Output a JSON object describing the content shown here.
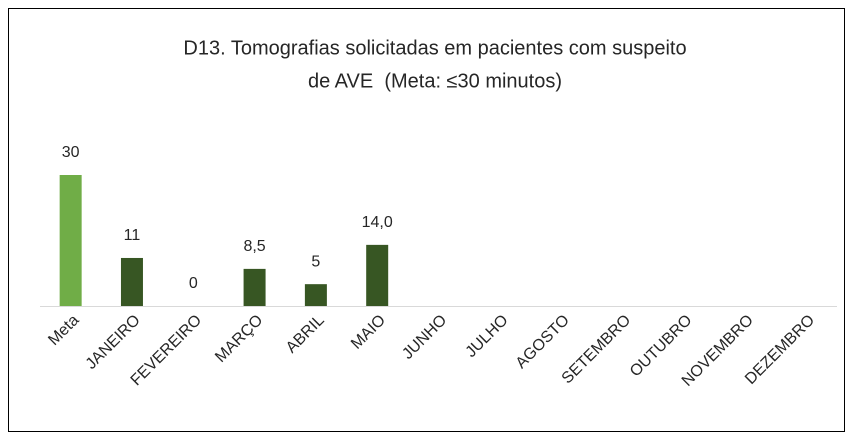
{
  "chart_data": {
    "type": "bar",
    "title": [
      "D13. Tomografias solicitadas em pacientes com suspeito",
      "de AVE  (Meta: ≤30 minutos)"
    ],
    "categories": [
      "Meta",
      "JANEIRO",
      "FEVEREIRO",
      "MARÇO",
      "ABRIL",
      "MAIO",
      "JUNHO",
      "JULHO",
      "AGOSTO",
      "SETEMBRO",
      "OUTUBRO",
      "NOVEMBRO",
      "DEZEMBRO"
    ],
    "values": [
      30,
      11,
      0,
      8.5,
      5,
      14.0,
      null,
      null,
      null,
      null,
      null,
      null,
      null
    ],
    "value_labels": [
      "30",
      "11",
      "0",
      "8,5",
      "5",
      "14,0",
      null,
      null,
      null,
      null,
      null,
      null,
      null
    ],
    "colors": [
      "#70ad47",
      "#375623",
      "#375623",
      "#375623",
      "#375623",
      "#375623",
      "#375623",
      "#375623",
      "#375623",
      "#375623",
      "#375623",
      "#375623",
      "#375623"
    ]
  }
}
